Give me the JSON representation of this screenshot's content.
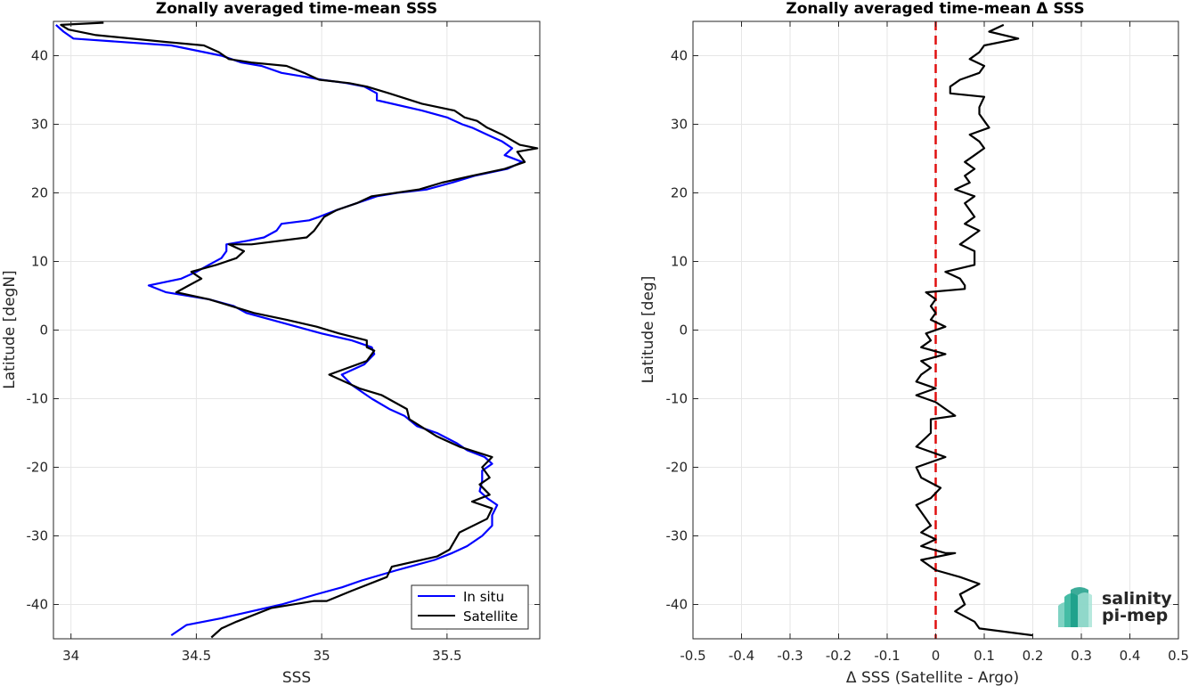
{
  "chart_data": [
    {
      "type": "line",
      "title": "Zonally averaged time-mean SSS",
      "xlabel": "SSS",
      "ylabel": "Latitude [degN]",
      "xlim": [
        33.93,
        35.87
      ],
      "ylim": [
        -45,
        45
      ],
      "xticks": [
        34,
        34.5,
        35,
        35.5
      ],
      "xtick_labels": [
        "34",
        "34.5",
        "35",
        "35.5"
      ],
      "yticks": [
        -40,
        -30,
        -20,
        -10,
        0,
        10,
        20,
        30,
        40
      ],
      "ytick_labels": [
        "-40",
        "-30",
        "-20",
        "-10",
        "0",
        "10",
        "20",
        "30",
        "40"
      ],
      "grid": true,
      "legend_position": "bottom-right",
      "series": [
        {
          "name": "In situ",
          "color": "#0000ff",
          "points": [
            [
              33.94,
              44.5
            ],
            [
              33.97,
              43.5
            ],
            [
              34.01,
              42.5
            ],
            [
              34.4,
              41.5
            ],
            [
              34.6,
              40
            ],
            [
              34.68,
              39
            ],
            [
              34.76,
              38.5
            ],
            [
              34.84,
              37.5
            ],
            [
              34.92,
              37
            ],
            [
              35.0,
              36.5
            ],
            [
              35.1,
              36
            ],
            [
              35.17,
              35.5
            ],
            [
              35.22,
              34.5
            ],
            [
              35.22,
              33.5
            ],
            [
              35.4,
              32
            ],
            [
              35.5,
              31
            ],
            [
              35.56,
              30
            ],
            [
              35.6,
              29.5
            ],
            [
              35.66,
              28.5
            ],
            [
              35.72,
              27.5
            ],
            [
              35.76,
              26.5
            ],
            [
              35.73,
              25.5
            ],
            [
              35.8,
              24.5
            ],
            [
              35.74,
              23.5
            ],
            [
              35.61,
              22.5
            ],
            [
              35.52,
              21.5
            ],
            [
              35.42,
              20.5
            ],
            [
              35.3,
              20
            ],
            [
              35.22,
              19.5
            ],
            [
              35.14,
              18.5
            ],
            [
              35.06,
              17.5
            ],
            [
              34.99,
              16.5
            ],
            [
              34.95,
              16
            ],
            [
              34.84,
              15.5
            ],
            [
              34.82,
              14.5
            ],
            [
              34.77,
              13.5
            ],
            [
              34.7,
              13
            ],
            [
              34.62,
              12.5
            ],
            [
              34.62,
              11.5
            ],
            [
              34.6,
              10.5
            ],
            [
              34.55,
              9.5
            ],
            [
              34.5,
              8.5
            ],
            [
              34.44,
              7.5
            ],
            [
              34.31,
              6.5
            ],
            [
              34.38,
              5.5
            ],
            [
              34.55,
              4.5
            ],
            [
              34.65,
              3.5
            ],
            [
              34.7,
              2.5
            ],
            [
              34.85,
              1
            ],
            [
              35.0,
              -0.5
            ],
            [
              35.12,
              -1.5
            ],
            [
              35.2,
              -2.5
            ],
            [
              35.21,
              -3.5
            ],
            [
              35.17,
              -5
            ],
            [
              35.08,
              -6.5
            ],
            [
              35.12,
              -8
            ],
            [
              35.2,
              -10
            ],
            [
              35.27,
              -11.5
            ],
            [
              35.33,
              -12.5
            ],
            [
              35.38,
              -14
            ],
            [
              35.46,
              -15
            ],
            [
              35.54,
              -16.5
            ],
            [
              35.58,
              -17.5
            ],
            [
              35.65,
              -18.5
            ],
            [
              35.68,
              -19.5
            ],
            [
              35.64,
              -20.5
            ],
            [
              35.64,
              -22
            ],
            [
              35.63,
              -23.5
            ],
            [
              35.66,
              -24.5
            ],
            [
              35.7,
              -25.5
            ],
            [
              35.68,
              -27
            ],
            [
              35.68,
              -28.5
            ],
            [
              35.64,
              -30
            ],
            [
              35.58,
              -31.5
            ],
            [
              35.52,
              -32.5
            ],
            [
              35.45,
              -33.5
            ],
            [
              35.3,
              -35
            ],
            [
              35.16,
              -36.5
            ],
            [
              35.08,
              -37.5
            ],
            [
              34.98,
              -38.5
            ],
            [
              34.84,
              -40
            ],
            [
              34.72,
              -41
            ],
            [
              34.6,
              -42
            ],
            [
              34.46,
              -43
            ],
            [
              34.4,
              -44.5
            ]
          ]
        },
        {
          "name": "Satellite",
          "color": "#000000",
          "points": [
            [
              34.13,
              44.8
            ],
            [
              33.96,
              44.5
            ],
            [
              33.99,
              43.8
            ],
            [
              34.1,
              43
            ],
            [
              34.38,
              42
            ],
            [
              34.53,
              41.5
            ],
            [
              34.59,
              40.5
            ],
            [
              34.63,
              39.5
            ],
            [
              34.72,
              39
            ],
            [
              34.86,
              38.5
            ],
            [
              34.93,
              37.5
            ],
            [
              34.99,
              36.5
            ],
            [
              35.11,
              36
            ],
            [
              35.18,
              35.5
            ],
            [
              35.27,
              34.5
            ],
            [
              35.4,
              33
            ],
            [
              35.53,
              32
            ],
            [
              35.57,
              31
            ],
            [
              35.62,
              30.5
            ],
            [
              35.66,
              29.5
            ],
            [
              35.72,
              28.5
            ],
            [
              35.79,
              27
            ],
            [
              35.86,
              26.5
            ],
            [
              35.78,
              26
            ],
            [
              35.81,
              24.5
            ],
            [
              35.73,
              23.5
            ],
            [
              35.6,
              22.5
            ],
            [
              35.48,
              21.5
            ],
            [
              35.39,
              20.5
            ],
            [
              35.2,
              19.5
            ],
            [
              35.14,
              18.5
            ],
            [
              35.06,
              17.5
            ],
            [
              35.01,
              16.5
            ],
            [
              34.99,
              15.5
            ],
            [
              34.97,
              14.5
            ],
            [
              34.94,
              13.5
            ],
            [
              34.72,
              12.5
            ],
            [
              34.63,
              12.5
            ],
            [
              34.69,
              11.5
            ],
            [
              34.66,
              10.5
            ],
            [
              34.58,
              9.5
            ],
            [
              34.48,
              8.5
            ],
            [
              34.52,
              7.5
            ],
            [
              34.47,
              6.5
            ],
            [
              34.42,
              5.5
            ],
            [
              34.55,
              4.5
            ],
            [
              34.64,
              3.5
            ],
            [
              34.73,
              2.5
            ],
            [
              34.86,
              1.5
            ],
            [
              34.98,
              0.5
            ],
            [
              35.07,
              -0.5
            ],
            [
              35.18,
              -1.5
            ],
            [
              35.18,
              -2.5
            ],
            [
              35.21,
              -3
            ],
            [
              35.18,
              -4.5
            ],
            [
              35.03,
              -6.5
            ],
            [
              35.15,
              -8.5
            ],
            [
              35.24,
              -9.5
            ],
            [
              35.34,
              -11.5
            ],
            [
              35.35,
              -13
            ],
            [
              35.46,
              -15.5
            ],
            [
              35.55,
              -17
            ],
            [
              35.68,
              -18.5
            ],
            [
              35.64,
              -20
            ],
            [
              35.67,
              -21.5
            ],
            [
              35.63,
              -22.5
            ],
            [
              35.67,
              -24
            ],
            [
              35.6,
              -25
            ],
            [
              35.68,
              -26
            ],
            [
              35.66,
              -27.5
            ],
            [
              35.55,
              -29.5
            ],
            [
              35.51,
              -32
            ],
            [
              35.46,
              -33
            ],
            [
              35.28,
              -34.5
            ],
            [
              35.26,
              -36
            ],
            [
              35.12,
              -38
            ],
            [
              35.02,
              -39.5
            ],
            [
              34.97,
              -39.5
            ],
            [
              34.8,
              -40.5
            ],
            [
              34.66,
              -42.5
            ],
            [
              34.6,
              -43.5
            ],
            [
              34.56,
              -44.8
            ]
          ]
        }
      ]
    },
    {
      "type": "line",
      "title": "Zonally averaged time-mean Δ SSS",
      "xlabel": "Δ SSS (Satellite - Argo)",
      "ylabel": "Latitude [deg]",
      "xlim": [
        -0.5,
        0.5
      ],
      "ylim": [
        -45,
        45
      ],
      "xticks": [
        -0.5,
        -0.4,
        -0.3,
        -0.2,
        -0.1,
        0,
        0.1,
        0.2,
        0.3,
        0.4,
        0.5
      ],
      "xtick_labels": [
        "-0.5",
        "-0.4",
        "-0.3",
        "-0.2",
        "-0.1",
        "0",
        "0.1",
        "0.2",
        "0.3",
        "0.4",
        "0.5"
      ],
      "yticks": [
        -40,
        -30,
        -20,
        -10,
        0,
        10,
        20,
        30,
        40
      ],
      "ytick_labels": [
        "-40",
        "-30",
        "-20",
        "-10",
        "0",
        "10",
        "20",
        "30",
        "40"
      ],
      "grid": true,
      "reference_line": {
        "x": 0,
        "color": "#e01010",
        "style": "dashed"
      },
      "series": [
        {
          "color": "#000000",
          "points": [
            [
              0.14,
              44.5
            ],
            [
              0.11,
              43.5
            ],
            [
              0.17,
              42.5
            ],
            [
              0.1,
              41.5
            ],
            [
              0.09,
              40.5
            ],
            [
              0.07,
              39.5
            ],
            [
              0.1,
              38.5
            ],
            [
              0.09,
              37.5
            ],
            [
              0.05,
              36.5
            ],
            [
              0.03,
              35.5
            ],
            [
              0.03,
              34.5
            ],
            [
              0.1,
              34
            ],
            [
              0.09,
              32.5
            ],
            [
              0.09,
              31.5
            ],
            [
              0.1,
              30.5
            ],
            [
              0.11,
              29.5
            ],
            [
              0.07,
              28.5
            ],
            [
              0.09,
              27.5
            ],
            [
              0.1,
              26.5
            ],
            [
              0.08,
              25.5
            ],
            [
              0.06,
              24.5
            ],
            [
              0.08,
              23.5
            ],
            [
              0.06,
              22.5
            ],
            [
              0.07,
              21.5
            ],
            [
              0.04,
              20.5
            ],
            [
              0.08,
              19.5
            ],
            [
              0.06,
              18.5
            ],
            [
              0.07,
              17.5
            ],
            [
              0.08,
              16.5
            ],
            [
              0.06,
              15.5
            ],
            [
              0.09,
              14.5
            ],
            [
              0.07,
              13.5
            ],
            [
              0.05,
              12.5
            ],
            [
              0.08,
              11.5
            ],
            [
              0.08,
              10.5
            ],
            [
              0.08,
              9.5
            ],
            [
              0.02,
              8.5
            ],
            [
              0.05,
              7.5
            ],
            [
              0.06,
              6.5
            ],
            [
              0.06,
              6.0
            ],
            [
              -0.02,
              5.5
            ],
            [
              0.0,
              4.5
            ],
            [
              -0.01,
              3.5
            ],
            [
              0.0,
              2.5
            ],
            [
              -0.01,
              1.5
            ],
            [
              0.02,
              0.5
            ],
            [
              -0.02,
              -0.5
            ],
            [
              -0.01,
              -1.5
            ],
            [
              -0.03,
              -2.5
            ],
            [
              0.02,
              -3.5
            ],
            [
              -0.03,
              -4.5
            ],
            [
              -0.01,
              -5.5
            ],
            [
              -0.03,
              -6.5
            ],
            [
              -0.04,
              -7.5
            ],
            [
              0.0,
              -8.5
            ],
            [
              -0.04,
              -9.5
            ],
            [
              0.0,
              -10.5
            ],
            [
              0.04,
              -12.5
            ],
            [
              -0.01,
              -13
            ],
            [
              -0.01,
              -15
            ],
            [
              -0.04,
              -17
            ],
            [
              0.02,
              -18.5
            ],
            [
              -0.04,
              -20
            ],
            [
              -0.03,
              -21.5
            ],
            [
              0.01,
              -23
            ],
            [
              -0.01,
              -24.5
            ],
            [
              -0.04,
              -25.5
            ],
            [
              -0.02,
              -27.5
            ],
            [
              -0.01,
              -28.5
            ],
            [
              -0.03,
              -29.5
            ],
            [
              0.0,
              -30.5
            ],
            [
              -0.03,
              -31.5
            ],
            [
              0.02,
              -32.5
            ],
            [
              0.04,
              -32.5
            ],
            [
              -0.03,
              -33.5
            ],
            [
              0.0,
              -35
            ],
            [
              0.05,
              -36
            ],
            [
              0.09,
              -37
            ],
            [
              0.05,
              -38.5
            ],
            [
              0.06,
              -40
            ],
            [
              0.04,
              -41
            ],
            [
              0.08,
              -42.5
            ],
            [
              0.09,
              -43.5
            ],
            [
              0.2,
              -44.5
            ]
          ]
        }
      ]
    }
  ],
  "legend": {
    "items": [
      {
        "label": "In situ",
        "color": "#0000ff"
      },
      {
        "label": "Satellite",
        "color": "#000000"
      }
    ]
  },
  "logo": {
    "line1": "salinity",
    "line2": "pi-mep",
    "color": "#1a9e87"
  }
}
